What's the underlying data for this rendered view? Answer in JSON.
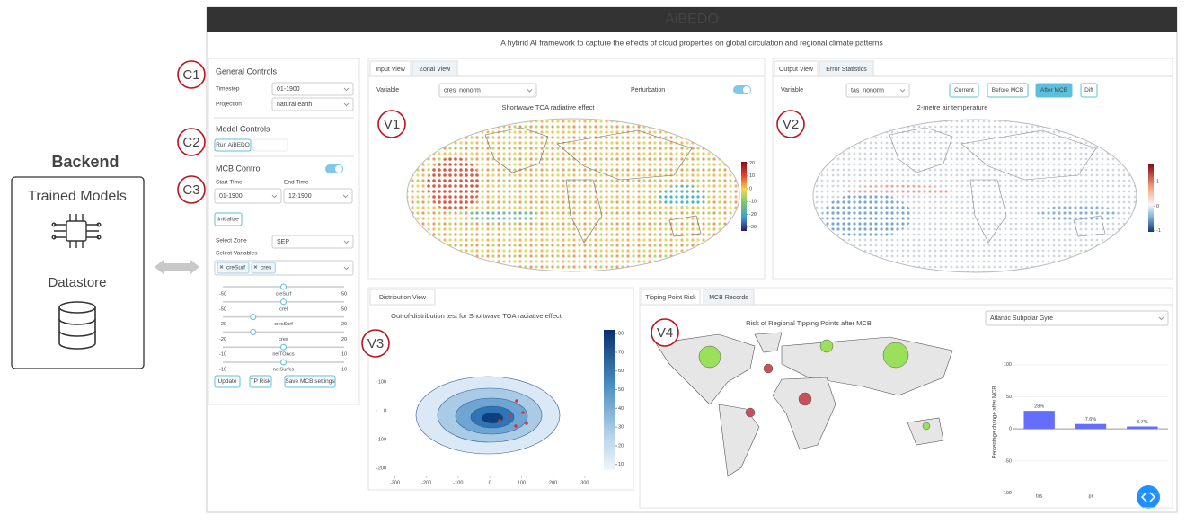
{
  "backend": {
    "title": "Backend",
    "items": [
      "Trained Models",
      "Datastore"
    ]
  },
  "app": {
    "title": "AiBEDO",
    "subtitle": "A hybrid AI framework to capture the effects of cloud properties on global circulation and regional climate patterns"
  },
  "annotations": [
    "C1",
    "C2",
    "C3",
    "V1",
    "V2",
    "V3",
    "V4"
  ],
  "controls": {
    "general": {
      "heading": "General Controls",
      "timestep_label": "Timestep",
      "timestep": "01-1900",
      "projection_label": "Projection",
      "projection": "natural earth"
    },
    "model": {
      "heading": "Model Controls",
      "run_button": "Run AiBEDO"
    },
    "mcb": {
      "heading": "MCB Control",
      "start_label": "Start Time",
      "end_label": "End Time",
      "start": "01-1900",
      "end": "12-1900",
      "initialize": "Initialize",
      "zone_label": "Select Zone",
      "zone": "SEP",
      "variables_label": "Select Variables",
      "variables": [
        "creSurf",
        "cres"
      ],
      "sliders": [
        {
          "name": "creSurf",
          "min": -50,
          "max": 50,
          "value": 0
        },
        {
          "name": "crel",
          "min": -50,
          "max": 50,
          "value": 0
        },
        {
          "name": "cresSurf",
          "min": -20,
          "max": 20,
          "value": -10
        },
        {
          "name": "cres",
          "min": -20,
          "max": 20,
          "value": -10
        },
        {
          "name": "netTOAcs",
          "min": -10,
          "max": 10,
          "value": 0
        },
        {
          "name": "netSurfcs",
          "min": -10,
          "max": 10,
          "value": 0
        }
      ],
      "buttons": [
        "Update",
        "TP Risk",
        "Save MCB settings"
      ]
    }
  },
  "input_view": {
    "tabs": [
      "Input View",
      "Zonal View"
    ],
    "variable_label": "Variable",
    "variable": "cres_nonorm",
    "perturbation_label": "Perturbation",
    "map_title": "Shortwave TOA radiative effect",
    "colorbar": {
      "lim": [
        -33,
        21
      ],
      "ticks": [
        20,
        10,
        0,
        -10,
        -20,
        -30
      ]
    }
  },
  "output_view": {
    "tabs": [
      "Output View",
      "Error Statistics"
    ],
    "variable_label": "Variable",
    "variable": "tas_nonorm",
    "buttons": [
      "Current",
      "Before MCB",
      "After MCB",
      "Diff"
    ],
    "map_title": "2-metre air temperature",
    "colorbar": {
      "lim": [
        -1.05,
        1.7
      ],
      "ticks": [
        1,
        0,
        -1
      ]
    }
  },
  "distribution_view": {
    "tab": "Distribution View",
    "chart": {
      "type": "contour",
      "title": "Out-of-distribution test for Shortwave TOA radiative effect",
      "xlim": [
        -355,
        340
      ],
      "xticks": [
        -300,
        -200,
        -100,
        0,
        100,
        200,
        300
      ],
      "ylim": [
        -228,
        287
      ],
      "yticks": [
        100,
        0,
        -100,
        -200
      ],
      "colorbar": {
        "lim": [
          7,
          82
        ],
        "ticks": [
          80,
          70,
          60,
          50,
          40,
          30,
          20,
          10
        ]
      }
    }
  },
  "tipping_view": {
    "tabs": [
      "Tipping Point Risk",
      "MCB Records"
    ],
    "map_title": "Risk of Regional Tipping Points after MCB",
    "region": "Atlantic Subpolar Gyre",
    "chart": {
      "type": "bar",
      "categories": [
        "tas",
        "pr",
        null
      ],
      "values": [
        28,
        7.6,
        3.7
      ],
      "value_labels": [
        "28%",
        "7.6%",
        "3.7%"
      ],
      "ylabel": "Percentage change after MCB",
      "ylim": [
        -109,
        129
      ],
      "yticks": [
        100,
        50,
        0,
        -50,
        -100
      ],
      "color": "#636efa"
    }
  }
}
